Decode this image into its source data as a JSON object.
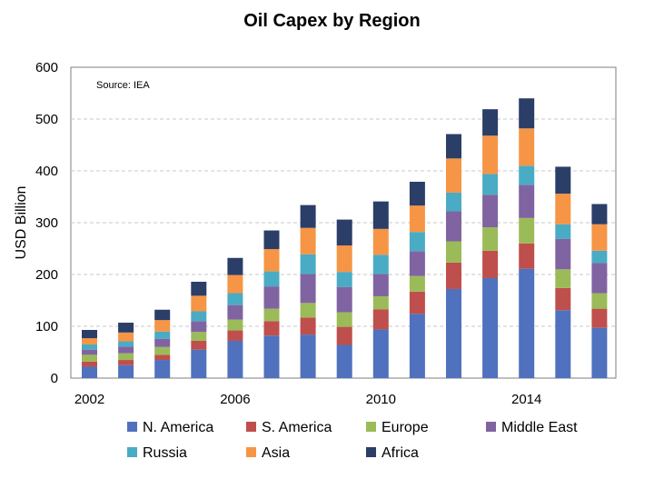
{
  "chart_data": {
    "type": "bar",
    "stacked": true,
    "title": "Oil Capex by Region",
    "annotation": "Source: IEA",
    "ylabel": "USD Billion",
    "xlabel": "",
    "ylim": [
      0,
      600
    ],
    "yticks": [
      0,
      100,
      200,
      300,
      400,
      500,
      600
    ],
    "xticks": [
      "2002",
      "2006",
      "2010",
      "2014"
    ],
    "grid": "horizontal dashed",
    "legend_position": "bottom",
    "categories": [
      "2002",
      "2003",
      "2004",
      "2005",
      "2006",
      "2007",
      "2008",
      "2009",
      "2010",
      "2011",
      "2012",
      "2013",
      "2014",
      "2015",
      "2016"
    ],
    "series": [
      {
        "name": "N. America",
        "color": "#4f71be",
        "values": [
          22,
          25,
          35,
          55,
          72,
          82,
          84,
          64,
          94,
          124,
          172,
          193,
          211,
          131,
          97
        ]
      },
      {
        "name": "S. America",
        "color": "#bf4f4c",
        "values": [
          10,
          10,
          10,
          17,
          20,
          28,
          33,
          35,
          39,
          43,
          51,
          53,
          49,
          43,
          37
        ]
      },
      {
        "name": "Europe",
        "color": "#9bbb58",
        "values": [
          13,
          13,
          15,
          17,
          21,
          24,
          28,
          28,
          25,
          30,
          41,
          45,
          49,
          36,
          30
        ]
      },
      {
        "name": "Middle East",
        "color": "#8064a1",
        "values": [
          10,
          13,
          16,
          21,
          28,
          43,
          56,
          49,
          43,
          48,
          58,
          63,
          64,
          59,
          58
        ]
      },
      {
        "name": "Russia",
        "color": "#4aabc5",
        "values": [
          10,
          10,
          14,
          19,
          23,
          29,
          38,
          29,
          37,
          37,
          36,
          40,
          37,
          28,
          24
        ]
      },
      {
        "name": "Asia",
        "color": "#f69545",
        "values": [
          12,
          17,
          22,
          30,
          35,
          43,
          51,
          51,
          50,
          51,
          66,
          74,
          72,
          59,
          51
        ]
      },
      {
        "name": "Africa",
        "color": "#2b3e68",
        "values": [
          16,
          19,
          20,
          27,
          33,
          36,
          44,
          50,
          53,
          46,
          47,
          51,
          58,
          52,
          39
        ]
      }
    ]
  }
}
